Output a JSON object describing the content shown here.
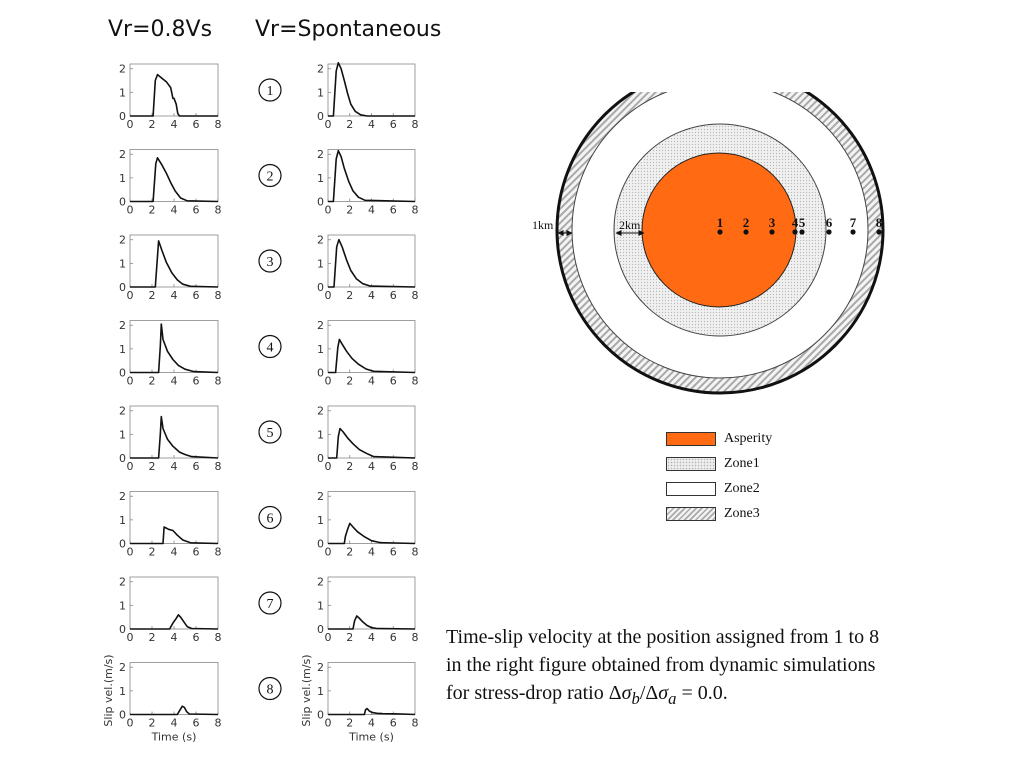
{
  "columns": {
    "left_title": "Vr=0.8Vs",
    "right_title": "Vr=Spontaneous"
  },
  "station_labels": [
    "1",
    "2",
    "3",
    "4",
    "5",
    "6",
    "7",
    "8"
  ],
  "chart_data": {
    "type": "line",
    "xlabel": "Time (s)",
    "ylabel": "Slip vel.(m/s)",
    "xlim": [
      0,
      8
    ],
    "ylim": [
      0,
      2.2
    ],
    "xticks": [
      "0",
      "2",
      "4",
      "6",
      "8"
    ],
    "yticks": [
      "0",
      "1",
      "2"
    ],
    "panels": {
      "left": [
        {
          "station": "1",
          "points": [
            [
              0,
              0
            ],
            [
              2.1,
              0
            ],
            [
              2.3,
              1.5
            ],
            [
              2.5,
              1.75
            ],
            [
              2.9,
              1.6
            ],
            [
              3.3,
              1.45
            ],
            [
              3.7,
              1.2
            ],
            [
              3.9,
              0.75
            ],
            [
              4.0,
              0.75
            ],
            [
              4.2,
              0.5
            ],
            [
              4.35,
              0.1
            ],
            [
              4.5,
              0
            ],
            [
              8,
              0
            ]
          ]
        },
        {
          "station": "2",
          "points": [
            [
              0,
              0
            ],
            [
              2.1,
              0
            ],
            [
              2.35,
              1.6
            ],
            [
              2.5,
              1.85
            ],
            [
              2.9,
              1.55
            ],
            [
              3.3,
              1.2
            ],
            [
              3.7,
              0.8
            ],
            [
              4.1,
              0.45
            ],
            [
              4.6,
              0.15
            ],
            [
              5.2,
              0.03
            ],
            [
              8,
              0
            ]
          ]
        },
        {
          "station": "3",
          "points": [
            [
              0,
              0
            ],
            [
              2.3,
              0
            ],
            [
              2.6,
              1.95
            ],
            [
              2.9,
              1.55
            ],
            [
              3.3,
              1.05
            ],
            [
              3.8,
              0.6
            ],
            [
              4.3,
              0.3
            ],
            [
              4.8,
              0.12
            ],
            [
              5.5,
              0.03
            ],
            [
              8,
              0
            ]
          ]
        },
        {
          "station": "4",
          "points": [
            [
              0,
              0
            ],
            [
              2.6,
              0
            ],
            [
              2.75,
              1.1
            ],
            [
              2.85,
              2.05
            ],
            [
              3.0,
              1.4
            ],
            [
              3.4,
              0.9
            ],
            [
              3.9,
              0.55
            ],
            [
              4.4,
              0.3
            ],
            [
              5.0,
              0.14
            ],
            [
              5.8,
              0.04
            ],
            [
              8,
              0
            ]
          ]
        },
        {
          "station": "5",
          "points": [
            [
              0,
              0
            ],
            [
              2.6,
              0
            ],
            [
              2.75,
              1.0
            ],
            [
              2.85,
              1.75
            ],
            [
              3.0,
              1.25
            ],
            [
              3.4,
              0.8
            ],
            [
              3.9,
              0.5
            ],
            [
              4.5,
              0.25
            ],
            [
              5.0,
              0.15
            ],
            [
              5.6,
              0.06
            ],
            [
              8,
              0
            ]
          ]
        },
        {
          "station": "6",
          "points": [
            [
              0,
              0
            ],
            [
              3.0,
              0
            ],
            [
              3.1,
              0.7
            ],
            [
              3.3,
              0.65
            ],
            [
              3.5,
              0.6
            ],
            [
              3.9,
              0.55
            ],
            [
              4.3,
              0.35
            ],
            [
              4.8,
              0.15
            ],
            [
              5.5,
              0.03
            ],
            [
              8,
              0
            ]
          ]
        },
        {
          "station": "7",
          "points": [
            [
              0,
              0
            ],
            [
              3.6,
              0
            ],
            [
              3.9,
              0.25
            ],
            [
              4.2,
              0.45
            ],
            [
              4.4,
              0.6
            ],
            [
              4.6,
              0.5
            ],
            [
              4.9,
              0.3
            ],
            [
              5.2,
              0.1
            ],
            [
              5.6,
              0.02
            ],
            [
              8,
              0
            ]
          ]
        },
        {
          "station": "8",
          "points": [
            [
              0,
              0
            ],
            [
              4.3,
              0
            ],
            [
              4.55,
              0.2
            ],
            [
              4.75,
              0.35
            ],
            [
              4.95,
              0.3
            ],
            [
              5.15,
              0.12
            ],
            [
              5.4,
              0.02
            ],
            [
              8,
              0
            ]
          ]
        }
      ],
      "right": [
        {
          "station": "1",
          "points": [
            [
              0,
              0
            ],
            [
              0.5,
              0
            ],
            [
              0.75,
              1.9
            ],
            [
              0.95,
              2.25
            ],
            [
              1.2,
              2.0
            ],
            [
              1.5,
              1.5
            ],
            [
              1.8,
              0.95
            ],
            [
              2.1,
              0.5
            ],
            [
              2.5,
              0.2
            ],
            [
              3.0,
              0.05
            ],
            [
              3.6,
              0
            ],
            [
              8,
              0
            ]
          ]
        },
        {
          "station": "2",
          "points": [
            [
              0,
              0
            ],
            [
              0.5,
              0
            ],
            [
              0.75,
              1.8
            ],
            [
              0.95,
              2.15
            ],
            [
              1.2,
              1.9
            ],
            [
              1.5,
              1.4
            ],
            [
              1.9,
              0.85
            ],
            [
              2.3,
              0.45
            ],
            [
              2.8,
              0.18
            ],
            [
              3.4,
              0.05
            ],
            [
              8,
              0
            ]
          ]
        },
        {
          "station": "3",
          "points": [
            [
              0,
              0
            ],
            [
              0.55,
              0
            ],
            [
              0.8,
              1.7
            ],
            [
              1.0,
              2.0
            ],
            [
              1.3,
              1.7
            ],
            [
              1.7,
              1.15
            ],
            [
              2.1,
              0.7
            ],
            [
              2.6,
              0.35
            ],
            [
              3.2,
              0.14
            ],
            [
              3.9,
              0.04
            ],
            [
              8,
              0
            ]
          ]
        },
        {
          "station": "4",
          "points": [
            [
              0,
              0
            ],
            [
              0.7,
              0
            ],
            [
              0.9,
              1.05
            ],
            [
              1.05,
              1.4
            ],
            [
              1.3,
              1.2
            ],
            [
              1.7,
              0.9
            ],
            [
              2.2,
              0.6
            ],
            [
              2.8,
              0.35
            ],
            [
              3.5,
              0.15
            ],
            [
              4.2,
              0.05
            ],
            [
              8,
              0
            ]
          ]
        },
        {
          "station": "5",
          "points": [
            [
              0,
              0
            ],
            [
              0.8,
              0
            ],
            [
              0.95,
              0.9
            ],
            [
              1.1,
              1.25
            ],
            [
              1.4,
              1.1
            ],
            [
              1.8,
              0.85
            ],
            [
              2.3,
              0.6
            ],
            [
              2.9,
              0.35
            ],
            [
              3.6,
              0.18
            ],
            [
              4.2,
              0.06
            ],
            [
              8,
              0
            ]
          ]
        },
        {
          "station": "6",
          "points": [
            [
              0,
              0
            ],
            [
              1.5,
              0
            ],
            [
              1.6,
              0.3
            ],
            [
              1.8,
              0.6
            ],
            [
              2.0,
              0.85
            ],
            [
              2.3,
              0.7
            ],
            [
              2.7,
              0.5
            ],
            [
              3.3,
              0.3
            ],
            [
              4.0,
              0.12
            ],
            [
              4.8,
              0.04
            ],
            [
              8,
              0
            ]
          ]
        },
        {
          "station": "7",
          "points": [
            [
              0,
              0
            ],
            [
              2.3,
              0
            ],
            [
              2.45,
              0.35
            ],
            [
              2.65,
              0.55
            ],
            [
              2.9,
              0.45
            ],
            [
              3.2,
              0.3
            ],
            [
              3.6,
              0.15
            ],
            [
              4.0,
              0.06
            ],
            [
              4.5,
              0.02
            ],
            [
              8,
              0
            ]
          ]
        },
        {
          "station": "8",
          "points": [
            [
              0,
              0
            ],
            [
              3.35,
              0
            ],
            [
              3.45,
              0.2
            ],
            [
              3.6,
              0.25
            ],
            [
              3.8,
              0.15
            ],
            [
              4.1,
              0.08
            ],
            [
              4.5,
              0.05
            ],
            [
              5.0,
              0.04
            ],
            [
              6.0,
              0.03
            ],
            [
              6.8,
              0.02
            ],
            [
              8,
              0
            ]
          ]
        }
      ]
    }
  },
  "diagram": {
    "scale_labels": [
      "1km",
      "2km"
    ],
    "point_labels": [
      "1",
      "2",
      "3",
      "4",
      "5",
      "6",
      "7",
      "8"
    ],
    "colors": {
      "asperity": "#ff6a13",
      "zone1": "#efefef",
      "zone2": "#ffffff",
      "zone3": "#b0b0b0"
    }
  },
  "legend": {
    "items": [
      "Asperity",
      "Zone1",
      "Zone2",
      "Zone3"
    ]
  },
  "caption": {
    "line1": "Time-slip velocity at the position assigned from 1 to 8",
    "line2": "in the right figure obtained from dynamic simulations",
    "line3_prefix": "for stress-drop ratio ",
    "delta": "Δ",
    "sigma": "σ",
    "sub_b": "b",
    "slash": "/",
    "sub_a": "a",
    "line3_suffix": " = 0.0."
  }
}
